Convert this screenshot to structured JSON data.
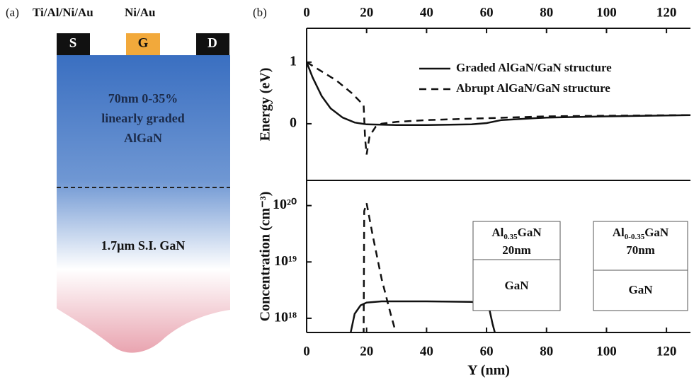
{
  "panel_a": {
    "label": "(a)",
    "metal_1": "Ti/Al/Ni/Au",
    "metal_2": "Ni/Au",
    "contacts": [
      "S",
      "G",
      "D"
    ],
    "layer_1": [
      "70nm 0-35%",
      "linearly graded",
      "AlGaN"
    ],
    "layer_2": "1.7μm S.I. GaN"
  },
  "chart_data": [
    {
      "type": "line",
      "label": "(b)",
      "ylabel": "Energy (eV)",
      "xaxis": "top",
      "xlim": [
        0,
        128
      ],
      "xticks": [
        0,
        20,
        40,
        60,
        80,
        100,
        120
      ],
      "ylim": [
        -0.92,
        1.55
      ],
      "yticks": [
        0,
        1
      ],
      "legend": "top-right",
      "series": [
        {
          "name": "Graded AlGaN/GaN structure",
          "color": "#111111",
          "style": "solid",
          "x": [
            0,
            2,
            5,
            8,
            12,
            16,
            20,
            30,
            40,
            55,
            60,
            65,
            80,
            100,
            128
          ],
          "values": [
            1.0,
            0.75,
            0.45,
            0.25,
            0.1,
            0.02,
            -0.01,
            -0.02,
            -0.02,
            -0.01,
            0.01,
            0.06,
            0.1,
            0.12,
            0.14
          ]
        },
        {
          "name": "Abrupt AlGaN/GaN structure",
          "color": "#111111",
          "style": "dashed",
          "x": [
            0,
            5,
            10,
            15,
            19,
            19.5,
            20,
            21,
            23,
            25,
            30,
            40,
            60,
            80,
            100,
            128
          ],
          "values": [
            1.0,
            0.85,
            0.7,
            0.5,
            0.3,
            -0.25,
            -0.5,
            -0.2,
            -0.05,
            0.0,
            0.03,
            0.06,
            0.09,
            0.12,
            0.13,
            0.14
          ]
        }
      ]
    },
    {
      "type": "line",
      "ylabel": "Concentration (cm⁻³)",
      "xlabel": "Y (nm)",
      "xaxis": "bottom",
      "log_y": true,
      "xlim": [
        0,
        128
      ],
      "xticks": [
        0,
        20,
        40,
        60,
        80,
        100,
        120
      ],
      "ylim": [
        5.6e+17,
        2.8e+20
      ],
      "yticks": [
        {
          "value": 1e+18,
          "label": "10¹⁸"
        },
        {
          "value": 1e+19,
          "label": "10¹⁹"
        },
        {
          "value": 1e+20,
          "label": "10²⁰"
        }
      ],
      "series": [
        {
          "color": "#111111",
          "style": "solid",
          "x": [
            14.5,
            16,
            18,
            20,
            25,
            40,
            55,
            60,
            61,
            62,
            63
          ],
          "values": [
            5e+17,
            1.2e+18,
            1.7e+18,
            1.9e+18,
            2e+18,
            2e+18,
            1.95e+18,
            1.8e+18,
            1.4e+18,
            8e+17,
            5e+17
          ]
        },
        {
          "color": "#111111",
          "style": "dashed",
          "x": [
            19,
            19.2,
            20,
            22,
            25,
            28,
            30
          ],
          "values": [
            5e+17,
            8e+19,
            1.1e+20,
            3e+19,
            5e+18,
            1.2e+18,
            5e+17
          ]
        }
      ],
      "insets": [
        {
          "element": "Al",
          "subscript": "0.35",
          "rest": "GaN",
          "thickness": "20nm",
          "substrate": "GaN"
        },
        {
          "element": "Al",
          "subscript": "0-0.35",
          "rest": "GaN",
          "thickness": "70nm",
          "substrate": "GaN"
        }
      ]
    }
  ]
}
